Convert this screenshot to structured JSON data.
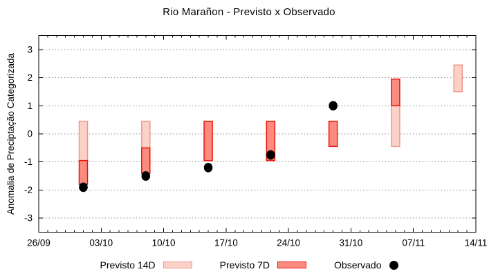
{
  "window": {
    "background": "#ffffff"
  },
  "chart_data": {
    "type": "bar",
    "subtype": "ranged-bars-with-scatter-overlay",
    "title": "Rio Marañon - Previsto x Observado",
    "xlabel": "",
    "ylabel": "Anomalia de Preciptação Categorizada",
    "ylim": [
      -3.5,
      3.5
    ],
    "y_ticks": [
      3,
      2,
      1,
      0,
      -1,
      -2,
      -3
    ],
    "x_range_days": 49,
    "x_tick_labels": [
      "26/09",
      "03/10",
      "10/10",
      "17/10",
      "24/10",
      "31/10",
      "07/11",
      "14/11"
    ],
    "x_tick_days": [
      0,
      7,
      14,
      21,
      28,
      35,
      42,
      49
    ],
    "x_minor_tick_interval_days": 1,
    "grid": "horizontal-dotted",
    "grid_color": "#8a8a8a",
    "legend_position": "bottom",
    "series": [
      {
        "name": "Previsto 14D",
        "type": "range-bar",
        "fill": "#fbd1c9",
        "stroke": "#f0968b",
        "points": [
          {
            "date": "01/10",
            "day": 5,
            "high": 0.45,
            "low": -0.95
          },
          {
            "date": "08/10",
            "day": 12,
            "high": 0.45,
            "low": -0.5
          },
          {
            "date": "05/11",
            "day": 40,
            "high": 1.0,
            "low": -0.45
          },
          {
            "date": "12/11",
            "day": 47,
            "high": 2.45,
            "low": 1.5
          }
        ]
      },
      {
        "name": "Previsto 7D",
        "type": "range-bar",
        "fill": "#f98c7f",
        "stroke": "#ea140a",
        "points": [
          {
            "date": "01/10",
            "day": 5,
            "high": -0.95,
            "low": -1.8
          },
          {
            "date": "08/10",
            "day": 12,
            "high": -0.5,
            "low": -1.4
          },
          {
            "date": "15/10",
            "day": 19,
            "high": 0.45,
            "low": -0.95
          },
          {
            "date": "22/10",
            "day": 26,
            "high": 0.45,
            "low": -0.95
          },
          {
            "date": "29/10",
            "day": 33,
            "high": 0.45,
            "low": -0.45
          },
          {
            "date": "05/11",
            "day": 40,
            "high": 1.95,
            "low": 1.0
          }
        ]
      },
      {
        "name": "Observado",
        "type": "scatter",
        "color": "#000000",
        "points": [
          {
            "date": "01/10",
            "day": 5,
            "value": -1.9
          },
          {
            "date": "08/10",
            "day": 12,
            "value": -1.5
          },
          {
            "date": "15/10",
            "day": 19,
            "value": -1.2
          },
          {
            "date": "22/10",
            "day": 26,
            "value": -0.75
          },
          {
            "date": "29/10",
            "day": 33,
            "value": 1.0
          }
        ]
      }
    ]
  }
}
